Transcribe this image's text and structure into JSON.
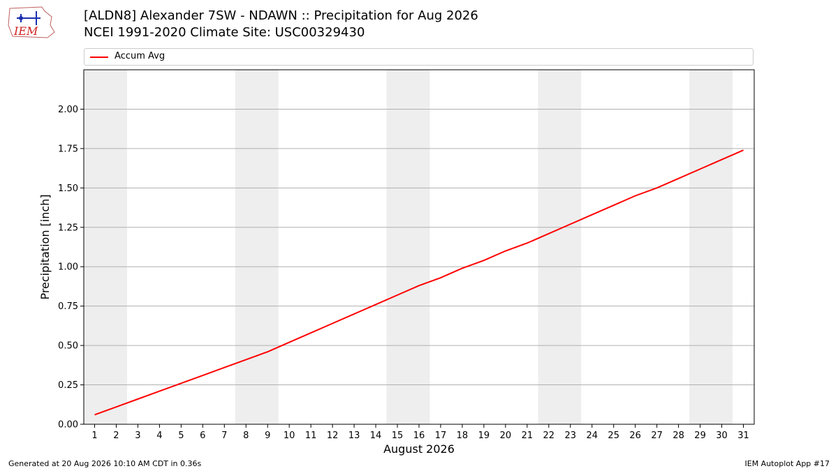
{
  "header": {
    "title_line1": "[ALDN8] Alexander 7SW - NDAWN :: Precipitation for Aug 2026",
    "title_line2": "NCEI 1991-2020 Climate Site: USC00329430",
    "logo_text": "IEM"
  },
  "footer": {
    "generated": "Generated at 20 Aug 2026 10:10 AM CDT in 0.36s",
    "app": "IEM Autoplot App #17"
  },
  "colors": {
    "series": "#ff0000",
    "weekend_band": "#eeeeee",
    "grid": "#b0b0b0"
  },
  "chart_data": {
    "type": "line",
    "title": "[ALDN8] Alexander 7SW - NDAWN :: Precipitation for Aug 2026",
    "subtitle": "NCEI 1991-2020 Climate Site: USC00329430",
    "xlabel": "August 2026",
    "ylabel": "Precipitation [inch]",
    "x": [
      1,
      2,
      3,
      4,
      5,
      6,
      7,
      8,
      9,
      10,
      11,
      12,
      13,
      14,
      15,
      16,
      17,
      18,
      19,
      20,
      21,
      22,
      23,
      24,
      25,
      26,
      27,
      28,
      29,
      30,
      31
    ],
    "series": [
      {
        "name": "Accum Avg",
        "color": "#ff0000",
        "values": [
          0.06,
          0.11,
          0.16,
          0.21,
          0.26,
          0.31,
          0.36,
          0.41,
          0.46,
          0.52,
          0.58,
          0.64,
          0.7,
          0.76,
          0.82,
          0.88,
          0.93,
          0.99,
          1.04,
          1.1,
          1.15,
          1.21,
          1.27,
          1.33,
          1.39,
          1.45,
          1.5,
          1.56,
          1.62,
          1.68,
          1.74
        ]
      }
    ],
    "xlim": [
      0.5,
      31.5
    ],
    "ylim": [
      0,
      2.25
    ],
    "yticks": [
      0.0,
      0.25,
      0.5,
      0.75,
      1.0,
      1.25,
      1.5,
      1.75,
      2.0
    ],
    "ytick_labels": [
      "0.00",
      "0.25",
      "0.50",
      "0.75",
      "1.00",
      "1.25",
      "1.50",
      "1.75",
      "2.00"
    ],
    "xtick_labels": [
      "1",
      "2",
      "3",
      "4",
      "5",
      "6",
      "7",
      "8",
      "9",
      "10",
      "11",
      "12",
      "13",
      "14",
      "15",
      "16",
      "17",
      "18",
      "19",
      "20",
      "21",
      "22",
      "23",
      "24",
      "25",
      "26",
      "27",
      "28",
      "29",
      "30",
      "31"
    ],
    "weekend_bands": [
      [
        1,
        2
      ],
      [
        8,
        9
      ],
      [
        15,
        16
      ],
      [
        22,
        23
      ],
      [
        29,
        30
      ]
    ],
    "grid": "horizontal",
    "legend_position": "top"
  }
}
